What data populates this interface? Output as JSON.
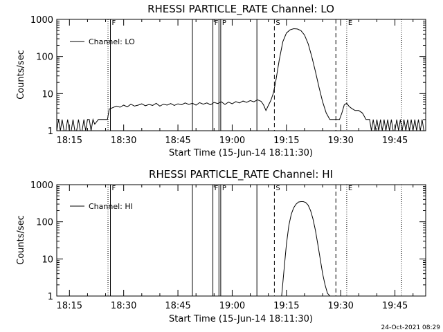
{
  "footer_timestamp": "24-Oct-2021 08:29",
  "chart_data": [
    {
      "type": "line",
      "title": "RHESSI PARTICLE_RATE Channel: LO",
      "xlabel": "Start Time (15-Jun-14 18:11:30)",
      "ylabel": "Counts/sec",
      "yscale": "log",
      "ylim": [
        1,
        1000
      ],
      "xlim": [
        "18:11:30",
        "19:53:30"
      ],
      "xticks": [
        "18:15",
        "18:30",
        "18:45",
        "19:00",
        "19:15",
        "19:30",
        "19:45"
      ],
      "yticks": [
        "1",
        "10",
        "100",
        "1000"
      ],
      "legend": {
        "label": "Channel: LO",
        "position": "top-left"
      },
      "markers": [
        {
          "time": "18:25:40",
          "style": "dotted",
          "label": ""
        },
        {
          "time": "18:26:20",
          "style": "solid",
          "label": "F"
        },
        {
          "time": "18:49:00",
          "style": "solid",
          "label": ""
        },
        {
          "time": "18:54:40",
          "style": "solid",
          "label": "F"
        },
        {
          "time": "18:56:20",
          "style": "solid",
          "label": ""
        },
        {
          "time": "18:56:50",
          "style": "solid",
          "label": "P"
        },
        {
          "time": "19:06:50",
          "style": "solid",
          "label": ""
        },
        {
          "time": "19:11:40",
          "style": "dashed",
          "label": "S"
        },
        {
          "time": "19:28:40",
          "style": "dashed",
          "label": ""
        },
        {
          "time": "19:31:40",
          "style": "dotted",
          "label": "E"
        },
        {
          "time": "19:46:50",
          "style": "dotted",
          "label": ""
        }
      ],
      "series": [
        {
          "x": [
            "18:11:30",
            "18:12:00",
            "18:12:30",
            "18:13:00",
            "18:13:30",
            "18:14:00",
            "18:14:30",
            "18:15:00",
            "18:15:30",
            "18:16:00",
            "18:16:30",
            "18:17:00",
            "18:17:30",
            "18:18:00",
            "18:18:30",
            "18:19:00",
            "18:19:30",
            "18:20:00",
            "18:20:30",
            "18:21:00",
            "18:21:30",
            "18:22:00",
            "18:23:00",
            "18:24:00",
            "18:25:00",
            "18:25:30",
            "18:26:00",
            "18:27:00",
            "18:28:00",
            "18:29:00",
            "18:30:00",
            "18:31:00",
            "18:32:00",
            "18:33:00",
            "18:34:00",
            "18:35:00",
            "18:36:00",
            "18:37:00",
            "18:38:00",
            "18:39:00",
            "18:40:00",
            "18:41:00",
            "18:42:00",
            "18:43:00",
            "18:44:00",
            "18:45:00",
            "18:46:00",
            "18:47:00",
            "18:48:00",
            "18:49:00",
            "18:50:00",
            "18:51:00",
            "18:52:00",
            "18:53:00",
            "18:54:00",
            "18:55:00",
            "18:56:00",
            "18:57:00",
            "18:58:00",
            "18:59:00",
            "19:00:00",
            "19:01:00",
            "19:02:00",
            "19:03:00",
            "19:04:00",
            "19:05:00",
            "19:06:00",
            "19:07:00",
            "19:08:00",
            "19:08:40",
            "19:09:20",
            "19:10:00",
            "19:10:40",
            "19:11:20",
            "19:12:00",
            "19:13:00",
            "19:14:00",
            "19:15:00",
            "19:16:00",
            "19:17:00",
            "19:18:00",
            "19:19:00",
            "19:20:00",
            "19:21:00",
            "19:22:00",
            "19:23:00",
            "19:24:00",
            "19:25:00",
            "19:26:00",
            "19:27:00",
            "19:27:40",
            "19:28:20",
            "19:29:00",
            "19:29:40",
            "19:30:20",
            "19:31:00",
            "19:31:40",
            "19:32:20",
            "19:33:00",
            "19:34:00",
            "19:35:00",
            "19:36:00",
            "19:37:00",
            "19:38:00",
            "19:38:30",
            "19:39:00",
            "19:39:30",
            "19:40:00",
            "19:40:30",
            "19:41:00",
            "19:41:30",
            "19:42:00",
            "19:42:30",
            "19:43:00",
            "19:43:30",
            "19:44:00",
            "19:44:30",
            "19:45:00",
            "19:45:30",
            "19:46:00",
            "19:46:30",
            "19:47:00",
            "19:47:30",
            "19:48:00",
            "19:48:30",
            "19:49:00",
            "19:49:30",
            "19:50:00",
            "19:50:30",
            "19:51:00",
            "19:51:30",
            "19:52:00",
            "19:52:30",
            "19:53:00"
          ],
          "y": [
            1,
            2,
            1,
            2,
            1,
            1,
            2,
            1,
            1,
            2,
            1,
            1,
            2,
            1,
            1,
            2,
            1,
            2,
            2,
            1,
            2,
            1.5,
            2,
            2,
            2,
            2,
            3.8,
            4.2,
            4.6,
            4.3,
            4.9,
            4.4,
            5.2,
            4.6,
            4.9,
            5.3,
            4.7,
            5.1,
            4.8,
            5.5,
            4.6,
            5.2,
            4.9,
            5.4,
            4.8,
            5.3,
            5.0,
            5.6,
            5.1,
            5.5,
            4.9,
            5.7,
            5.2,
            5.6,
            5.0,
            5.8,
            5.4,
            6.0,
            5.1,
            5.9,
            5.3,
            6.1,
            5.6,
            6.3,
            5.8,
            6.5,
            6.0,
            6.8,
            6.2,
            5.0,
            3.5,
            4.8,
            6.5,
            10,
            20,
            80,
            250,
            430,
            520,
            560,
            550,
            500,
            380,
            220,
            100,
            40,
            15,
            6,
            3,
            2,
            2,
            2,
            2,
            2,
            3,
            5,
            5.5,
            4.5,
            4,
            3.5,
            3.5,
            3,
            2,
            2,
            1,
            2,
            1,
            2,
            1,
            2,
            1,
            2,
            1,
            2,
            1,
            2,
            1,
            1,
            2,
            1,
            2,
            1,
            2,
            1,
            2,
            1,
            2,
            1,
            2,
            1,
            2,
            1,
            2,
            1
          ]
        }
      ]
    },
    {
      "type": "line",
      "title": "RHESSI PARTICLE_RATE Channel: HI",
      "xlabel": "Start Time (15-Jun-14 18:11:30)",
      "ylabel": "Counts/sec",
      "yscale": "log",
      "ylim": [
        1,
        1000
      ],
      "xlim": [
        "18:11:30",
        "19:53:30"
      ],
      "xticks": [
        "18:15",
        "18:30",
        "18:45",
        "19:00",
        "19:15",
        "19:30",
        "19:45"
      ],
      "yticks": [
        "1",
        "10",
        "100",
        "1000"
      ],
      "legend": {
        "label": "Channel: HI",
        "position": "top-left"
      },
      "markers": [
        {
          "time": "18:25:40",
          "style": "dotted",
          "label": ""
        },
        {
          "time": "18:26:20",
          "style": "solid",
          "label": "F"
        },
        {
          "time": "18:49:00",
          "style": "solid",
          "label": ""
        },
        {
          "time": "18:54:40",
          "style": "solid",
          "label": "F"
        },
        {
          "time": "18:56:20",
          "style": "solid",
          "label": ""
        },
        {
          "time": "18:56:50",
          "style": "solid",
          "label": "P"
        },
        {
          "time": "19:06:50",
          "style": "solid",
          "label": ""
        },
        {
          "time": "19:11:40",
          "style": "dashed",
          "label": "S"
        },
        {
          "time": "19:28:40",
          "style": "dashed",
          "label": ""
        },
        {
          "time": "19:31:40",
          "style": "dotted",
          "label": "E"
        },
        {
          "time": "19:46:50",
          "style": "dotted",
          "label": ""
        }
      ],
      "series": [
        {
          "x": [
            "19:13:40",
            "19:14:20",
            "19:15:00",
            "19:15:40",
            "19:16:20",
            "19:17:00",
            "19:17:40",
            "19:18:20",
            "19:19:00",
            "19:19:40",
            "19:20:20",
            "19:21:00",
            "19:21:40",
            "19:22:20",
            "19:23:00",
            "19:23:40",
            "19:24:20",
            "19:25:00",
            "19:25:40",
            "19:26:20",
            "19:27:00"
          ],
          "y": [
            1,
            5,
            25,
            80,
            160,
            240,
            300,
            340,
            350,
            350,
            330,
            280,
            200,
            120,
            60,
            25,
            10,
            4,
            2,
            1.2,
            1
          ]
        }
      ]
    }
  ]
}
